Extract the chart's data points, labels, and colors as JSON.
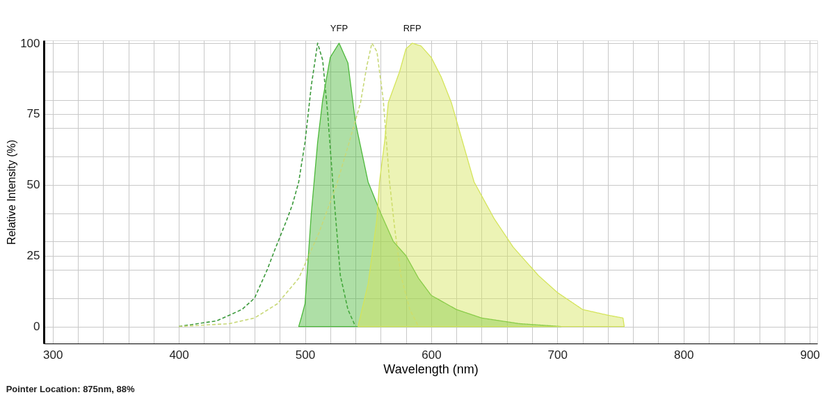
{
  "chart_data": {
    "type": "area",
    "xlabel": "Wavelength (nm)",
    "ylabel": "Relative Intensity (%)",
    "xlim": [
      293,
      906
    ],
    "ylim": [
      -6,
      101
    ],
    "xticks": [
      300,
      {
        "value": 320,
        "label": null
      },
      {
        "value": 340,
        "label": null
      },
      {
        "value": 360,
        "label": null
      },
      {
        "value": 380,
        "label": null
      },
      400,
      {
        "value": 420,
        "label": null
      },
      {
        "value": 440,
        "label": null
      },
      {
        "value": 460,
        "label": null
      },
      {
        "value": 480,
        "label": null
      },
      500,
      {
        "value": 520,
        "label": null
      },
      {
        "value": 540,
        "label": null
      },
      {
        "value": 560,
        "label": null
      },
      {
        "value": 580,
        "label": null
      },
      600,
      {
        "value": 620,
        "label": null
      },
      {
        "value": 640,
        "label": null
      },
      {
        "value": 660,
        "label": null
      },
      {
        "value": 680,
        "label": null
      },
      700,
      {
        "value": 720,
        "label": null
      },
      {
        "value": 740,
        "label": null
      },
      {
        "value": 760,
        "label": null
      },
      {
        "value": 780,
        "label": null
      },
      800,
      {
        "value": 820,
        "label": null
      },
      {
        "value": 840,
        "label": null
      },
      {
        "value": 860,
        "label": null
      },
      {
        "value": 880,
        "label": null
      },
      900
    ],
    "yticks": [
      0,
      {
        "value": 10,
        "label": null
      },
      {
        "value": 20,
        "label": null
      },
      25,
      {
        "value": 30,
        "label": null
      },
      {
        "value": 40,
        "label": null
      },
      50,
      {
        "value": 60,
        "label": null
      },
      {
        "value": 70,
        "label": null
      },
      75,
      {
        "value": 80,
        "label": null
      },
      {
        "value": 90,
        "label": null
      },
      100
    ],
    "grid": true,
    "series": [
      {
        "type": "line",
        "line_style": "dashed",
        "color": "#3c9a3c",
        "x": [
          400,
          430,
          450,
          460,
          470,
          476,
          485,
          490,
          495,
          500,
          505,
          510,
          514,
          518,
          522,
          528,
          534,
          540
        ],
        "values": [
          0,
          2,
          6,
          10,
          20,
          27,
          37,
          43,
          51,
          65,
          85,
          100,
          94,
          75,
          51,
          18,
          6,
          0
        ]
      },
      {
        "color": "#4cb83a",
        "x": [
          495,
          497,
          500,
          505,
          510,
          514,
          520,
          527,
          534,
          540,
          550,
          560,
          570,
          580,
          590,
          600,
          620,
          640,
          670,
          703
        ],
        "values": [
          0,
          3,
          8,
          40,
          65,
          80,
          95,
          100,
          93,
          72,
          51,
          40,
          30,
          25,
          17,
          11,
          6,
          3,
          1,
          0
        ]
      },
      {
        "type": "line",
        "line_style": "dashed",
        "color": "#c8d878",
        "x": [
          400,
          440,
          460,
          478,
          495,
          511,
          525,
          535,
          544,
          549,
          553,
          557,
          562,
          567,
          571,
          576,
          583,
          590
        ],
        "values": [
          0,
          1,
          3,
          8,
          17,
          33,
          50,
          65,
          79,
          92,
          100,
          97,
          80,
          51,
          35,
          18,
          6,
          0
        ]
      },
      {
        "color": "#d4e45a",
        "x": [
          542,
          550,
          557,
          559,
          563,
          566,
          575,
          580,
          585,
          592,
          600,
          608,
          616,
          625,
          634,
          650,
          665,
          685,
          700,
          720,
          740,
          752,
          753
        ],
        "values": [
          0,
          15,
          38,
          51,
          65,
          79,
          90,
          98,
          100,
          99,
          95,
          88,
          79,
          65,
          51,
          38,
          28,
          18,
          12,
          6,
          4,
          3,
          0
        ]
      }
    ],
    "annotations": [
      {
        "text": "YFP",
        "x": 527,
        "y": 100
      },
      {
        "text": "RFP",
        "x": 585,
        "y": 100
      },
      "Pointer Location: 875nm, 88%"
    ]
  }
}
